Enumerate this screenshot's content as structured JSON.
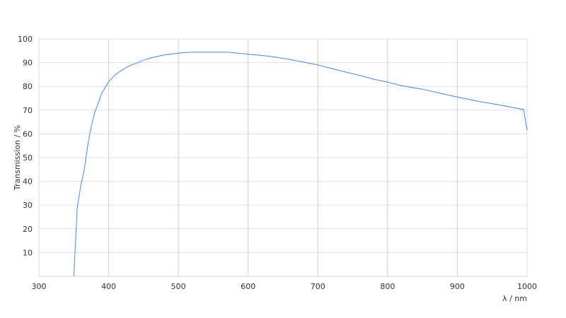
{
  "chart_data": {
    "type": "line",
    "title": "",
    "xlabel": "λ / nm",
    "ylabel": "Transmission / %",
    "xlim": [
      300,
      1000
    ],
    "ylim": [
      0,
      100
    ],
    "xticks": [
      300,
      400,
      500,
      600,
      700,
      800,
      900,
      1000
    ],
    "yticks": [
      10,
      20,
      30,
      40,
      50,
      60,
      70,
      80,
      90,
      100
    ],
    "grid": true,
    "line_color": "#4285f4",
    "series": [
      {
        "x": [
          350,
          355,
          360,
          365,
          370,
          375,
          380,
          390,
          400,
          410,
          420,
          430,
          440,
          450,
          460,
          470,
          480,
          490,
          500,
          510,
          520,
          550,
          570,
          580,
          600,
          620,
          640,
          660,
          680,
          700,
          720,
          740,
          760,
          780,
          800,
          820,
          850,
          880,
          900,
          930,
          960,
          995,
          1000
        ],
        "y": [
          0,
          29,
          38,
          45,
          55,
          63,
          69,
          77,
          82,
          85,
          87,
          88.7,
          89.8,
          91,
          92,
          92.6,
          93.2,
          93.6,
          94,
          94.2,
          94.4,
          94.4,
          94.4,
          94.1,
          93.5,
          93,
          92.3,
          91.3,
          90.2,
          89,
          87.5,
          86,
          84.6,
          83,
          81.8,
          80.3,
          78.8,
          76.8,
          75.5,
          73.7,
          72.2,
          70.2,
          61.5
        ]
      }
    ]
  }
}
